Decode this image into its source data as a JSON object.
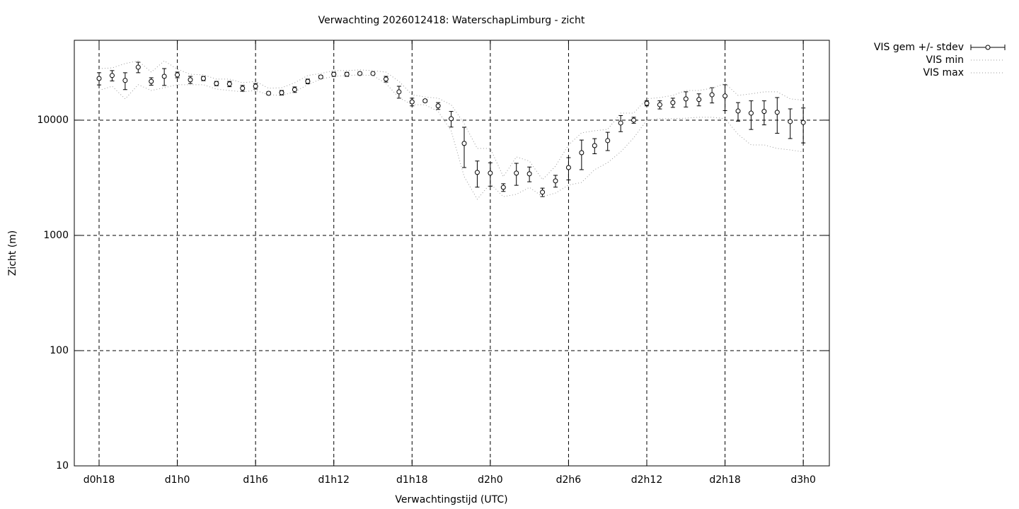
{
  "chart_data": {
    "type": "errorbar",
    "title": "Verwachting 2026012418: WaterschapLimburg - zicht",
    "xlabel": "Verwachtingstijd (UTC)",
    "ylabel": "Zicht (m)",
    "x": [
      18,
      19,
      20,
      21,
      22,
      23,
      24,
      25,
      26,
      27,
      28,
      29,
      30,
      31,
      32,
      33,
      34,
      35,
      36,
      37,
      38,
      39,
      40,
      41,
      42,
      43,
      44,
      45,
      46,
      47,
      48,
      49,
      50,
      51,
      52,
      53,
      54,
      55,
      56,
      57,
      58,
      59,
      60,
      61,
      62,
      63,
      64,
      65,
      66,
      67,
      68,
      69,
      70,
      71,
      72
    ],
    "xlim": [
      16.1,
      74
    ],
    "xticks": [
      {
        "value": 18,
        "label": "d0h18"
      },
      {
        "value": 24,
        "label": "d1h0"
      },
      {
        "value": 30,
        "label": "d1h6"
      },
      {
        "value": 36,
        "label": "d1h12"
      },
      {
        "value": 42,
        "label": "d1h18"
      },
      {
        "value": 48,
        "label": "d2h0"
      },
      {
        "value": 54,
        "label": "d2h6"
      },
      {
        "value": 60,
        "label": "d2h12"
      },
      {
        "value": 66,
        "label": "d2h18"
      },
      {
        "value": 72,
        "label": "d3h0"
      }
    ],
    "ylim": [
      10,
      49300
    ],
    "yticks": [
      10,
      100,
      1000,
      10000
    ],
    "log_y": true,
    "grid": true,
    "legend": "outside-top-right",
    "series": [
      {
        "name": "VIS gem +/- stdev",
        "color": "#000000",
        "values": [
          23000,
          24400,
          22100,
          28800,
          21700,
          24000,
          24700,
          22400,
          23000,
          20800,
          20600,
          18900,
          19700,
          17100,
          17300,
          18400,
          21700,
          23700,
          25000,
          25000,
          25400,
          25400,
          22700,
          17600,
          14400,
          14700,
          13300,
          10300,
          6280,
          3520,
          3470,
          2610,
          3470,
          3420,
          2370,
          2970,
          3880,
          5220,
          6010,
          6640,
          9450,
          10000,
          14000,
          13600,
          14200,
          15300,
          15100,
          16600,
          16200,
          12000,
          11500,
          11900,
          11700,
          9720,
          9550
        ],
        "errors": [
          2800,
          2500,
          3700,
          3000,
          1600,
          4000,
          1400,
          1600,
          1000,
          900,
          1100,
          1100,
          1100,
          500,
          800,
          1000,
          1000,
          700,
          1100,
          1000,
          700,
          700,
          1300,
          2100,
          1100,
          400,
          900,
          1600,
          2400,
          900,
          800,
          200,
          750,
          500,
          200,
          350,
          850,
          1500,
          900,
          1200,
          1500,
          600,
          700,
          1100,
          1300,
          2300,
          1800,
          2500,
          4100,
          2200,
          3200,
          2800,
          4000,
          2800,
          3200
        ]
      },
      {
        "name": "VIS min",
        "color": "#999999",
        "style": "dotted",
        "values": [
          18100,
          19700,
          15300,
          20300,
          18100,
          19100,
          20300,
          20300,
          20300,
          18600,
          18100,
          17600,
          18100,
          16600,
          16400,
          17600,
          20300,
          22700,
          24000,
          24400,
          24700,
          24400,
          20800,
          15700,
          13600,
          13600,
          11900,
          8090,
          3230,
          2060,
          2810,
          2170,
          2270,
          2610,
          2170,
          2330,
          2730,
          2880,
          3720,
          4280,
          5300,
          7030,
          10000,
          10300,
          10300,
          10400,
          10600,
          10600,
          10300,
          7540,
          6100,
          6100,
          5680,
          5520,
          5300
        ]
      },
      {
        "name": "VIS max",
        "color": "#999999",
        "style": "dotted",
        "values": [
          28000,
          28400,
          31000,
          32700,
          26100,
          32700,
          27700,
          25000,
          24700,
          22700,
          22700,
          21100,
          21700,
          18900,
          19100,
          21100,
          24400,
          25400,
          26900,
          26900,
          27300,
          26900,
          26100,
          21700,
          16600,
          15900,
          15500,
          13600,
          9320,
          5680,
          5680,
          3230,
          4800,
          4410,
          3050,
          3990,
          6100,
          7760,
          8090,
          8320,
          11500,
          11500,
          15300,
          15700,
          16400,
          18100,
          18100,
          18900,
          20800,
          16400,
          16900,
          17600,
          17600,
          15300,
          14900
        ]
      }
    ]
  }
}
